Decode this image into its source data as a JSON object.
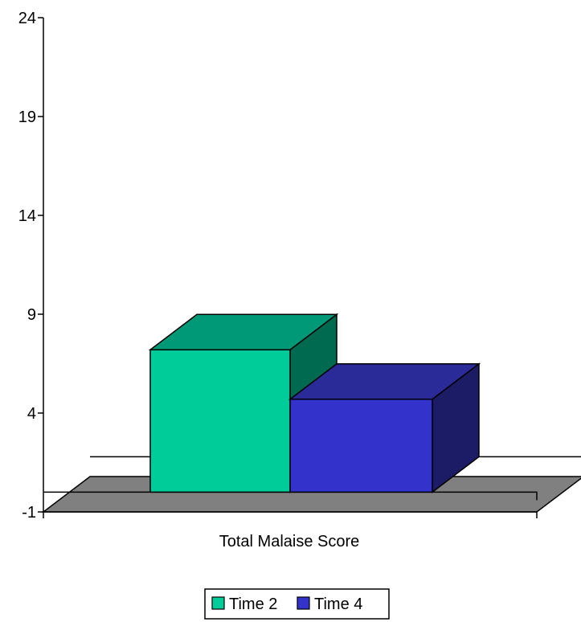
{
  "chart_data": {
    "type": "bar",
    "style": "3d",
    "categories": [
      "Total Malaise Score"
    ],
    "series": [
      {
        "name": "Time 2",
        "values": [
          7.2
        ]
      },
      {
        "name": "Time 4",
        "values": [
          4.7
        ]
      }
    ],
    "ylim": [
      -1,
      24
    ],
    "yticks": [
      "-1",
      "4",
      "9",
      "14",
      "19",
      "24"
    ],
    "grid": false,
    "legend": "bottom",
    "colors": {
      "time2_front": "#00cc99",
      "time2_top": "#009977",
      "time2_side": "#006a50",
      "time4_front": "#3333cc",
      "time4_top": "#2a2a99",
      "time4_side": "#1c1c66",
      "floor": "#808080"
    }
  }
}
